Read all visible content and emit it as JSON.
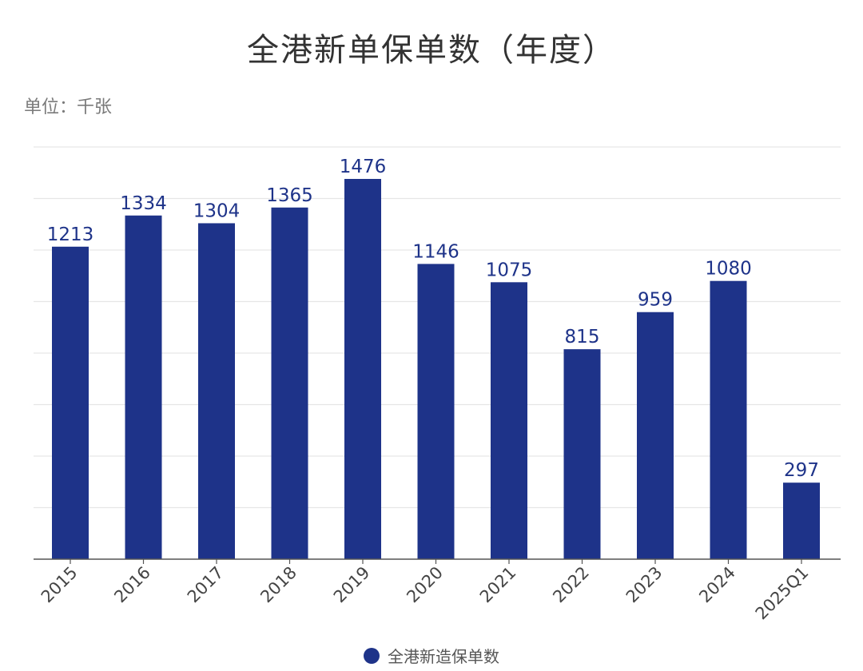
{
  "title": "全港新单保单数（年度）",
  "unit_label": "单位：千张",
  "colors": {
    "bar": "#1e3389",
    "grid": "#e6e6e6",
    "axis": "#555555",
    "label": "#1e3389",
    "tick": "#444444"
  },
  "legend": {
    "label": "全港新造保单数",
    "icon": "circle-icon"
  },
  "chart_data": {
    "type": "bar",
    "title": "全港新单保单数（年度）",
    "ylabel": "单位：千张",
    "categories": [
      "2015",
      "2016",
      "2017",
      "2018",
      "2019",
      "2020",
      "2021",
      "2022",
      "2023",
      "2024",
      "2025Q1"
    ],
    "series": [
      {
        "name": "全港新造保单数",
        "values": [
          1213,
          1334,
          1304,
          1365,
          1476,
          1146,
          1075,
          815,
          959,
          1080,
          297
        ]
      }
    ],
    "ylim": [
      0,
      1600
    ],
    "grid": true,
    "legend_position": "bottom"
  }
}
